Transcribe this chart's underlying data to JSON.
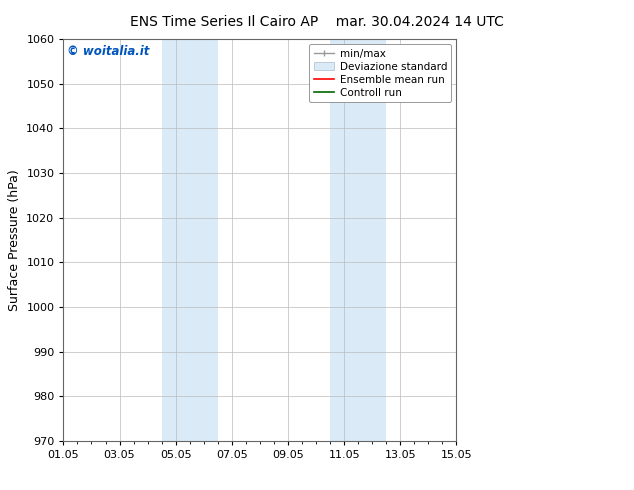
{
  "title_left": "ENS Time Series Il Cairo AP",
  "title_right": "mar. 30.04.2024 14 UTC",
  "ylabel": "Surface Pressure (hPa)",
  "ylim": [
    970,
    1060
  ],
  "yticks": [
    970,
    980,
    990,
    1000,
    1010,
    1020,
    1030,
    1040,
    1050,
    1060
  ],
  "xtick_labels": [
    "01.05",
    "03.05",
    "05.05",
    "07.05",
    "09.05",
    "11.05",
    "13.05",
    "15.05"
  ],
  "xtick_positions": [
    0,
    2,
    4,
    6,
    8,
    10,
    12,
    14
  ],
  "shade_bands": [
    {
      "x_start": 3.5,
      "x_end": 5.5,
      "color": "#daeaf7"
    },
    {
      "x_start": 9.5,
      "x_end": 11.5,
      "color": "#daeaf7"
    }
  ],
  "watermark": "© woitalia.it",
  "watermark_color": "#0055bb",
  "legend_entries": [
    {
      "label": "min/max",
      "color": "#aaaaaa"
    },
    {
      "label": "Deviazione standard",
      "color": "#ccddee"
    },
    {
      "label": "Ensemble mean run",
      "color": "red"
    },
    {
      "label": "Controll run",
      "color": "green"
    }
  ],
  "bg_color": "#ffffff",
  "plot_bg_color": "#ffffff",
  "grid_color": "#bbbbbb",
  "title_fontsize": 10,
  "label_fontsize": 9,
  "tick_fontsize": 8,
  "legend_fontsize": 7.5
}
